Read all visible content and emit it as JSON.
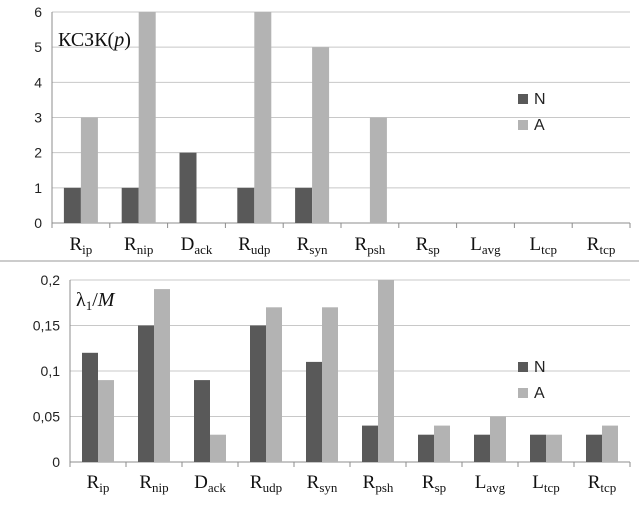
{
  "colors": {
    "N": "#595959",
    "A": "#b3b3b3",
    "grid": "#c8c8c8",
    "axis": "#8c8c8c"
  },
  "chart_data": [
    {
      "type": "bar",
      "title": "КСЗК(p)",
      "title_parts": {
        "main": "КСЗК(",
        "arg": "p",
        "close": ")"
      },
      "categories": [
        {
          "base": "R",
          "sub": "ip"
        },
        {
          "base": "R",
          "sub": "nip"
        },
        {
          "base": "D",
          "sub": "ack"
        },
        {
          "base": "R",
          "sub": "udp"
        },
        {
          "base": "R",
          "sub": "syn"
        },
        {
          "base": "R",
          "sub": "psh"
        },
        {
          "base": "R",
          "sub": "sp"
        },
        {
          "base": "L",
          "sub": "avg"
        },
        {
          "base": "L",
          "sub": "tcp"
        },
        {
          "base": "R",
          "sub": "tcp"
        }
      ],
      "series": [
        {
          "name": "N",
          "values": [
            1,
            1,
            2,
            1,
            1,
            0,
            0,
            0,
            0,
            0
          ]
        },
        {
          "name": "A",
          "values": [
            3,
            6,
            0,
            6,
            5,
            3,
            0,
            0,
            0,
            0
          ]
        }
      ],
      "ylim": [
        0,
        6
      ],
      "yticks": [
        "0",
        "1",
        "2",
        "3",
        "4",
        "5",
        "6"
      ],
      "grid": true,
      "legend": "right"
    },
    {
      "type": "bar",
      "title": "λ1/M",
      "title_parts": {
        "main": "λ",
        "sub": "1",
        "slash": "/",
        "arg": "M"
      },
      "categories": [
        {
          "base": "R",
          "sub": "ip"
        },
        {
          "base": "R",
          "sub": "nip"
        },
        {
          "base": "D",
          "sub": "ack"
        },
        {
          "base": "R",
          "sub": "udp"
        },
        {
          "base": "R",
          "sub": "syn"
        },
        {
          "base": "R",
          "sub": "psh"
        },
        {
          "base": "R",
          "sub": "sp"
        },
        {
          "base": "L",
          "sub": "avg"
        },
        {
          "base": "L",
          "sub": "tcp"
        },
        {
          "base": "R",
          "sub": "tcp"
        }
      ],
      "series": [
        {
          "name": "N",
          "values": [
            0.12,
            0.15,
            0.09,
            0.15,
            0.11,
            0.04,
            0.03,
            0.03,
            0.03,
            0.03
          ]
        },
        {
          "name": "A",
          "values": [
            0.09,
            0.19,
            0.03,
            0.17,
            0.17,
            0.2,
            0.04,
            0.05,
            0.03,
            0.04
          ]
        }
      ],
      "ylim": [
        0,
        0.2
      ],
      "yticks": [
        "0",
        "0,05",
        "0,1",
        "0,15",
        "0,2"
      ],
      "grid": true,
      "legend": "right"
    }
  ]
}
